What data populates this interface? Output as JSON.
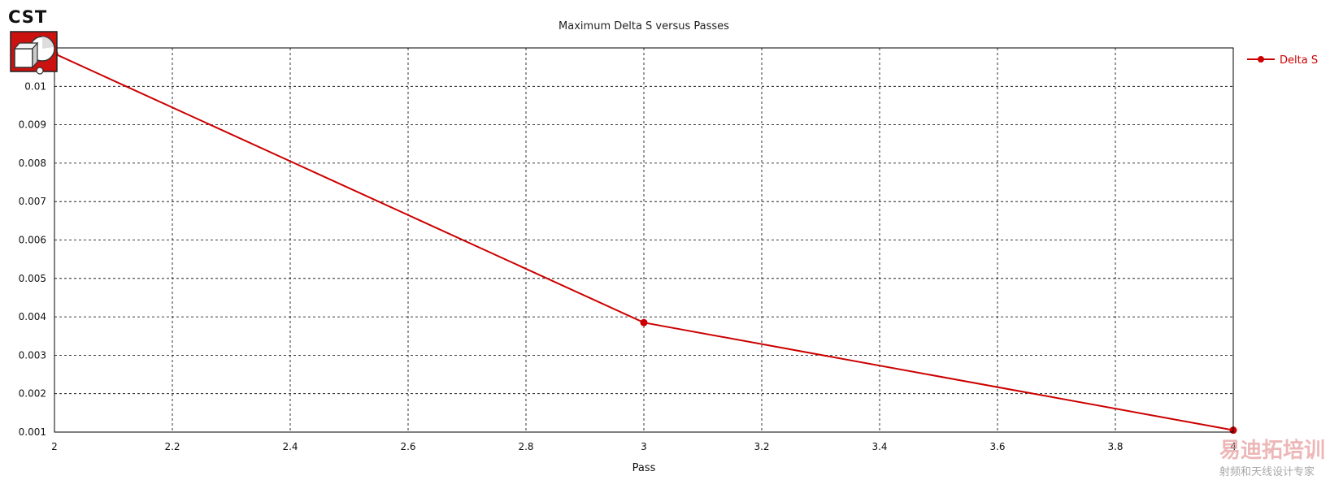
{
  "logo": {
    "text": "CST",
    "icon": "cst-cube-sphere-logo"
  },
  "watermark": {
    "line1": "易迪拓培训",
    "line2": "射频和天线设计专家"
  },
  "colors": {
    "series": "#cc0000",
    "grid": "#000000",
    "background": "#ffffff"
  },
  "chart_data": {
    "type": "line",
    "title": "Maximum Delta S versus Passes",
    "xlabel": "Pass",
    "ylabel": "",
    "xlim": [
      2,
      4
    ],
    "ylim": [
      0.001,
      0.011
    ],
    "x_ticks": [
      "2",
      "2.2",
      "2.4",
      "2.6",
      "2.8",
      "3",
      "3.2",
      "3.4",
      "3.6",
      "3.8",
      "4"
    ],
    "y_ticks": [
      "0.001",
      "0.002",
      "0.003",
      "0.004",
      "0.005",
      "0.006",
      "0.007",
      "0.008",
      "0.009",
      "0.01"
    ],
    "grid": true,
    "legend_position": "right",
    "series": [
      {
        "name": "Delta S",
        "color": "#cc0000",
        "marker": "circle",
        "x": [
          2,
          3,
          4
        ],
        "y": [
          0.01085,
          0.00385,
          0.00105
        ]
      }
    ]
  }
}
